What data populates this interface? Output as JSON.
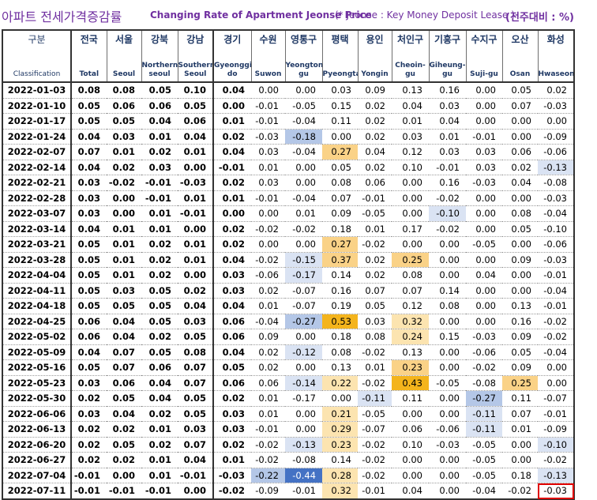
{
  "title": {
    "korean": "아파트 전세가격증감률",
    "english": "Changing Rate of Apartment Jeonse Price",
    "note": "(* Jeonse : Key Money Deposit Lease )",
    "unit": "(전주대비 : %)"
  },
  "colors": {
    "header_text": "#1f3864",
    "title_text": "#7030a0",
    "neg_light": "#dae3f3",
    "neg_med": "#b4c7e7",
    "neg_dark": "#4472c4",
    "pos_light": "#fce4b0",
    "pos_med": "#fad287",
    "pos_dark": "#f4b41c",
    "selection": "#e00000"
  },
  "columns": [
    {
      "kr": "구분",
      "en": "Classification"
    },
    {
      "kr": "전국",
      "en": "Total"
    },
    {
      "kr": "서울",
      "en": "Seoul"
    },
    {
      "kr": "강북",
      "en": "Northern seoul"
    },
    {
      "kr": "강남",
      "en": "Southern Seoul"
    },
    {
      "kr": "경기",
      "en": "Gyeonggi-do"
    },
    {
      "kr": "수원",
      "en": "Suwon"
    },
    {
      "kr": "영통구",
      "en": "Yeongtong-gu"
    },
    {
      "kr": "평택",
      "en": "Pyeongtaek"
    },
    {
      "kr": "용인",
      "en": "Yongin"
    },
    {
      "kr": "처인구",
      "en": "Cheoin-gu"
    },
    {
      "kr": "기흥구",
      "en": "Giheung-gu"
    },
    {
      "kr": "수지구",
      "en": "Suji-gu"
    },
    {
      "kr": "오산",
      "en": "Osan"
    },
    {
      "kr": "화성",
      "en": "Hwaseong"
    }
  ],
  "rows": [
    {
      "date": "2022-01-03",
      "v": [
        "0.08",
        "0.08",
        "0.05",
        "0.10",
        "0.04",
        "0.00",
        "0.00",
        "0.03",
        "0.09",
        "0.13",
        "0.16",
        "0.00",
        "0.05",
        "0.02"
      ]
    },
    {
      "date": "2022-01-10",
      "v": [
        "0.05",
        "0.06",
        "0.06",
        "0.05",
        "0.00",
        "-0.01",
        "-0.05",
        "0.15",
        "0.02",
        "0.04",
        "0.03",
        "0.00",
        "0.07",
        "-0.03"
      ]
    },
    {
      "date": "2022-01-17",
      "v": [
        "0.05",
        "0.05",
        "0.04",
        "0.06",
        "0.01",
        "-0.01",
        "-0.04",
        "0.11",
        "0.02",
        "0.01",
        "0.04",
        "0.00",
        "0.00",
        "0.00"
      ]
    },
    {
      "date": "2022-01-24",
      "v": [
        "0.04",
        "0.03",
        "0.01",
        "0.04",
        "0.02",
        "-0.03",
        "-0.18",
        "0.00",
        "0.02",
        "0.03",
        "0.01",
        "-0.01",
        "0.00",
        "-0.09"
      ]
    },
    {
      "date": "2022-02-07",
      "v": [
        "0.07",
        "0.01",
        "0.02",
        "0.01",
        "0.04",
        "0.03",
        "-0.04",
        "0.27",
        "0.04",
        "0.12",
        "0.03",
        "0.03",
        "0.06",
        "-0.06"
      ]
    },
    {
      "date": "2022-02-14",
      "v": [
        "0.04",
        "0.02",
        "0.03",
        "0.00",
        "-0.01",
        "0.01",
        "0.00",
        "0.05",
        "0.02",
        "0.10",
        "-0.01",
        "0.03",
        "0.02",
        "-0.13"
      ]
    },
    {
      "date": "2022-02-21",
      "v": [
        "0.03",
        "-0.02",
        "-0.01",
        "-0.03",
        "0.02",
        "0.03",
        "0.00",
        "0.08",
        "0.06",
        "0.00",
        "0.16",
        "-0.03",
        "0.04",
        "-0.08"
      ]
    },
    {
      "date": "2022-02-28",
      "v": [
        "0.03",
        "0.00",
        "-0.01",
        "0.01",
        "0.01",
        "-0.01",
        "-0.04",
        "0.07",
        "-0.01",
        "0.00",
        "-0.02",
        "0.00",
        "0.00",
        "-0.03"
      ]
    },
    {
      "date": "2022-03-07",
      "v": [
        "0.03",
        "0.00",
        "0.01",
        "-0.01",
        "0.00",
        "0.00",
        "0.01",
        "0.09",
        "-0.05",
        "0.00",
        "-0.10",
        "0.00",
        "0.08",
        "-0.04"
      ]
    },
    {
      "date": "2022-03-14",
      "v": [
        "0.04",
        "0.01",
        "0.01",
        "0.00",
        "0.02",
        "-0.02",
        "-0.02",
        "0.18",
        "0.01",
        "0.17",
        "-0.02",
        "0.00",
        "0.05",
        "-0.10"
      ]
    },
    {
      "date": "2022-03-21",
      "v": [
        "0.05",
        "0.01",
        "0.02",
        "0.01",
        "0.02",
        "0.00",
        "0.00",
        "0.27",
        "-0.02",
        "0.00",
        "0.00",
        "-0.05",
        "0.00",
        "-0.06"
      ]
    },
    {
      "date": "2022-03-28",
      "v": [
        "0.05",
        "0.01",
        "0.02",
        "0.01",
        "0.04",
        "-0.02",
        "-0.15",
        "0.37",
        "0.02",
        "0.25",
        "0.00",
        "0.00",
        "0.09",
        "-0.03"
      ]
    },
    {
      "date": "2022-04-04",
      "v": [
        "0.05",
        "0.01",
        "0.02",
        "0.00",
        "0.03",
        "-0.06",
        "-0.17",
        "0.14",
        "0.02",
        "0.08",
        "0.00",
        "0.04",
        "0.00",
        "-0.01"
      ]
    },
    {
      "date": "2022-04-11",
      "v": [
        "0.05",
        "0.03",
        "0.05",
        "0.02",
        "0.03",
        "0.02",
        "-0.07",
        "0.16",
        "0.07",
        "0.07",
        "0.14",
        "0.00",
        "0.00",
        "-0.04"
      ]
    },
    {
      "date": "2022-04-18",
      "v": [
        "0.05",
        "0.05",
        "0.05",
        "0.04",
        "0.04",
        "0.01",
        "-0.07",
        "0.19",
        "0.05",
        "0.12",
        "0.08",
        "0.00",
        "0.13",
        "-0.01"
      ]
    },
    {
      "date": "2022-04-25",
      "v": [
        "0.06",
        "0.04",
        "0.05",
        "0.03",
        "0.06",
        "-0.04",
        "-0.27",
        "0.53",
        "0.03",
        "0.32",
        "0.00",
        "0.00",
        "0.16",
        "-0.02"
      ]
    },
    {
      "date": "2022-05-02",
      "v": [
        "0.06",
        "0.04",
        "0.02",
        "0.05",
        "0.06",
        "0.09",
        "0.00",
        "0.18",
        "0.08",
        "0.24",
        "0.15",
        "-0.03",
        "0.09",
        "-0.02"
      ]
    },
    {
      "date": "2022-05-09",
      "v": [
        "0.04",
        "0.07",
        "0.05",
        "0.08",
        "0.04",
        "0.02",
        "-0.12",
        "0.08",
        "-0.02",
        "0.13",
        "0.00",
        "-0.06",
        "0.05",
        "-0.04"
      ]
    },
    {
      "date": "2022-05-16",
      "v": [
        "0.05",
        "0.07",
        "0.06",
        "0.07",
        "0.05",
        "0.02",
        "0.00",
        "0.13",
        "0.01",
        "0.23",
        "0.00",
        "-0.02",
        "0.09",
        "0.00"
      ]
    },
    {
      "date": "2022-05-23",
      "v": [
        "0.03",
        "0.06",
        "0.04",
        "0.07",
        "0.06",
        "0.06",
        "-0.14",
        "0.22",
        "-0.02",
        "0.43",
        "-0.05",
        "-0.08",
        "0.25",
        "0.00"
      ]
    },
    {
      "date": "2022-05-30",
      "v": [
        "0.02",
        "0.05",
        "0.04",
        "0.05",
        "0.02",
        "0.01",
        "-0.17",
        "0.00",
        "-0.11",
        "0.11",
        "0.00",
        "-0.27",
        "0.11",
        "-0.07"
      ]
    },
    {
      "date": "2022-06-06",
      "v": [
        "0.03",
        "0.04",
        "0.02",
        "0.05",
        "0.03",
        "0.01",
        "0.00",
        "0.21",
        "-0.05",
        "0.00",
        "0.00",
        "-0.11",
        "0.07",
        "-0.01"
      ]
    },
    {
      "date": "2022-06-13",
      "v": [
        "0.02",
        "0.02",
        "0.01",
        "0.03",
        "0.03",
        "-0.01",
        "0.00",
        "0.29",
        "-0.07",
        "0.06",
        "-0.06",
        "-0.11",
        "0.01",
        "-0.09"
      ]
    },
    {
      "date": "2022-06-20",
      "v": [
        "0.02",
        "0.05",
        "0.02",
        "0.07",
        "0.02",
        "-0.02",
        "-0.13",
        "0.23",
        "-0.02",
        "0.10",
        "-0.03",
        "-0.05",
        "0.00",
        "-0.10"
      ]
    },
    {
      "date": "2022-06-27",
      "v": [
        "0.02",
        "0.02",
        "0.01",
        "0.04",
        "0.01",
        "-0.02",
        "-0.08",
        "0.14",
        "-0.02",
        "0.00",
        "0.00",
        "-0.05",
        "0.00",
        "-0.02"
      ]
    },
    {
      "date": "2022-07-04",
      "v": [
        "-0.01",
        "0.00",
        "0.01",
        "-0.01",
        "-0.03",
        "-0.22",
        "-0.44",
        "0.28",
        "-0.02",
        "0.00",
        "0.00",
        "-0.05",
        "0.18",
        "-0.13"
      ]
    },
    {
      "date": "2022-07-11",
      "v": [
        "-0.01",
        "-0.01",
        "-0.01",
        "0.00",
        "-0.02",
        "-0.09",
        "-0.01",
        "0.32",
        "-0.01",
        "0.04",
        "0.00",
        "-0.04",
        "-0.02",
        "-0.03"
      ]
    }
  ],
  "highlights": [
    {
      "row": 3,
      "col": 7,
      "shade": "neg_med"
    },
    {
      "row": 4,
      "col": 8,
      "shade": "pos_med"
    },
    {
      "row": 5,
      "col": 14,
      "shade": "neg_light"
    },
    {
      "row": 8,
      "col": 11,
      "shade": "neg_light"
    },
    {
      "row": 10,
      "col": 8,
      "shade": "pos_med"
    },
    {
      "row": 11,
      "col": 7,
      "shade": "neg_light"
    },
    {
      "row": 11,
      "col": 8,
      "shade": "pos_med"
    },
    {
      "row": 11,
      "col": 10,
      "shade": "pos_med"
    },
    {
      "row": 12,
      "col": 7,
      "shade": "neg_light"
    },
    {
      "row": 15,
      "col": 7,
      "shade": "neg_med"
    },
    {
      "row": 15,
      "col": 8,
      "shade": "pos_dark"
    },
    {
      "row": 15,
      "col": 10,
      "shade": "pos_light"
    },
    {
      "row": 16,
      "col": 10,
      "shade": "pos_light"
    },
    {
      "row": 17,
      "col": 7,
      "shade": "neg_light"
    },
    {
      "row": 18,
      "col": 10,
      "shade": "pos_med"
    },
    {
      "row": 19,
      "col": 7,
      "shade": "neg_light"
    },
    {
      "row": 19,
      "col": 8,
      "shade": "pos_light"
    },
    {
      "row": 19,
      "col": 10,
      "shade": "pos_dark"
    },
    {
      "row": 19,
      "col": 13,
      "shade": "pos_med"
    },
    {
      "row": 20,
      "col": 9,
      "shade": "neg_light"
    },
    {
      "row": 20,
      "col": 12,
      "shade": "neg_med"
    },
    {
      "row": 21,
      "col": 8,
      "shade": "pos_light"
    },
    {
      "row": 21,
      "col": 12,
      "shade": "neg_light"
    },
    {
      "row": 22,
      "col": 8,
      "shade": "pos_light"
    },
    {
      "row": 22,
      "col": 12,
      "shade": "neg_light"
    },
    {
      "row": 23,
      "col": 7,
      "shade": "neg_light"
    },
    {
      "row": 23,
      "col": 8,
      "shade": "pos_light"
    },
    {
      "row": 23,
      "col": 14,
      "shade": "neg_light"
    },
    {
      "row": 25,
      "col": 6,
      "shade": "neg_med"
    },
    {
      "row": 25,
      "col": 7,
      "shade": "neg_dark"
    },
    {
      "row": 25,
      "col": 8,
      "shade": "pos_light"
    },
    {
      "row": 25,
      "col": 14,
      "shade": "neg_light"
    },
    {
      "row": 26,
      "col": 8,
      "shade": "pos_light"
    }
  ],
  "selected_cell": {
    "row": 26,
    "col": 14
  }
}
